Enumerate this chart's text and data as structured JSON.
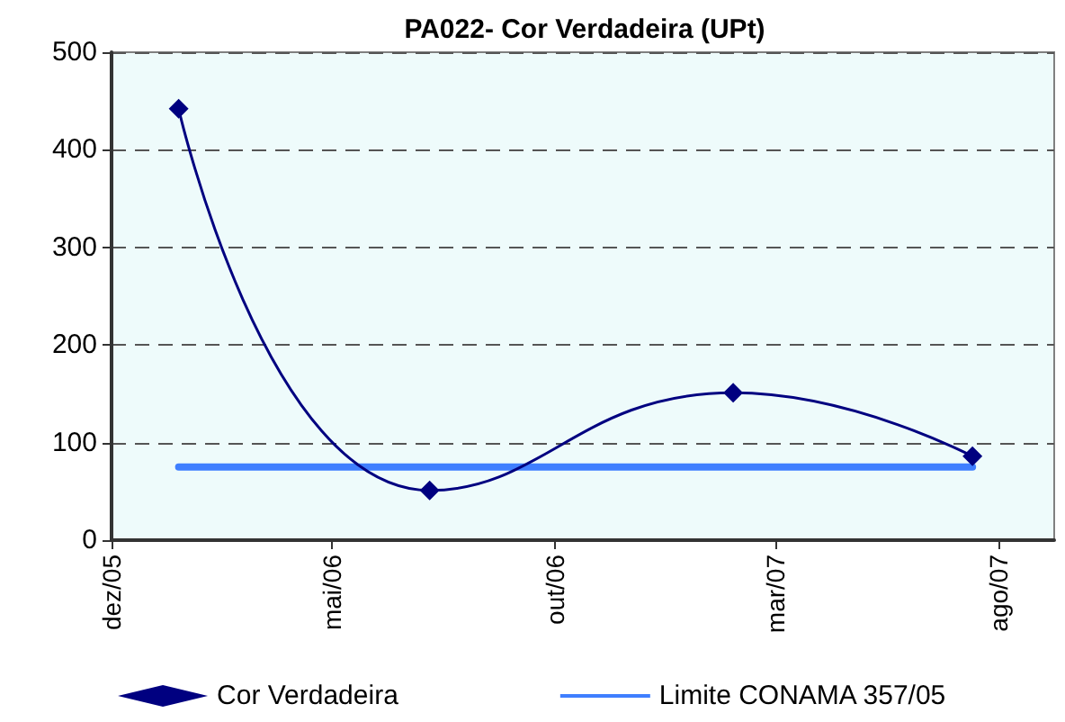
{
  "chart_data": {
    "type": "line",
    "title": "PA022- Cor Verdadeira (UPt)",
    "xlim": [
      "2005-12-01",
      "2007-09-08"
    ],
    "xticks": [
      {
        "value": "2005-12-01",
        "label": "dez/05"
      },
      {
        "value": "2006-05-01",
        "label": "mai/06"
      },
      {
        "value": "2006-10-01",
        "label": "out/06"
      },
      {
        "value": "2007-03-01",
        "label": "mar/07"
      },
      {
        "value": "2007-08-01",
        "label": "ago/07"
      }
    ],
    "ylim": [
      0,
      500
    ],
    "yticks": [
      0,
      100,
      200,
      300,
      400,
      500
    ],
    "grid": "y",
    "legend": "bottom",
    "series": [
      {
        "name": "Cor Verdadeira",
        "color": "#000080",
        "marker": "diamond",
        "x": [
          "2006-01-16",
          "2006-07-07",
          "2007-01-31",
          "2007-07-14"
        ],
        "values": [
          442,
          51,
          151,
          86
        ]
      },
      {
        "name": "Limite CONAMA 357/05",
        "color": "#3f7fff",
        "marker": "none",
        "x": [
          "2006-01-16",
          "2007-07-14"
        ],
        "values": [
          75,
          75
        ]
      }
    ]
  }
}
